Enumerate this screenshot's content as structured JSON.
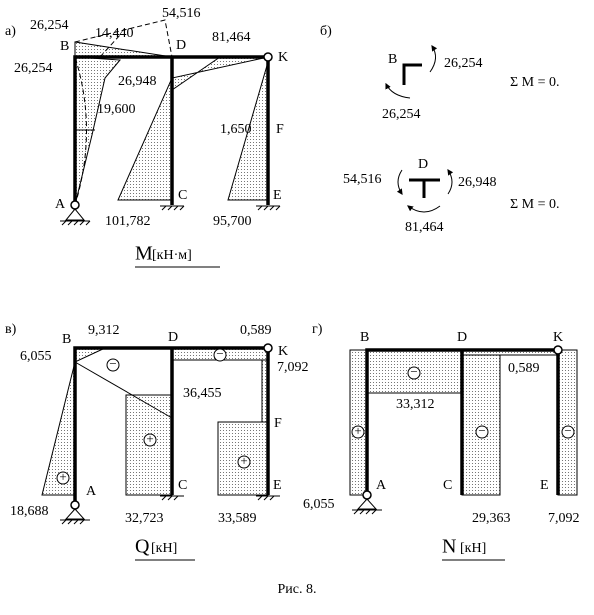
{
  "caption": "Рис. 8.",
  "panel_a": {
    "label": "а)",
    "nodes": [
      "A",
      "B",
      "C",
      "D",
      "K",
      "E",
      "F"
    ],
    "values": [
      "26,254",
      "14,440",
      "54,516",
      "81,464",
      "26,254",
      "26,948",
      "19,600",
      "1,650",
      "101,782",
      "95,700"
    ],
    "title": "M",
    "unit": "[кН·м]"
  },
  "panel_b": {
    "label": "б)",
    "node_b": "B",
    "b_values": [
      "26,254",
      "26,254"
    ],
    "b_sum": "Σ M = 0.",
    "node_d": "D",
    "d_values": [
      "54,516",
      "26,948",
      "81,464"
    ],
    "d_sum": "Σ M = 0."
  },
  "panel_v": {
    "label": "в)",
    "nodes": [
      "A",
      "B",
      "C",
      "D",
      "K",
      "E",
      "F"
    ],
    "values": [
      "9,312",
      "6,055",
      "0,589",
      "7,092",
      "36,455",
      "18,688",
      "32,723",
      "33,589"
    ],
    "signs": [
      "−",
      "−",
      "+",
      "+",
      "+"
    ],
    "title": "Q",
    "unit": "[кН]"
  },
  "panel_g": {
    "label": "г)",
    "nodes": [
      "A",
      "B",
      "C",
      "D",
      "K",
      "E"
    ],
    "values": [
      "0,589",
      "33,312",
      "6,055",
      "29,363",
      "7,092"
    ],
    "signs": [
      "−",
      "+",
      "−",
      "−"
    ],
    "title": "N",
    "unit": "[кН]"
  }
}
